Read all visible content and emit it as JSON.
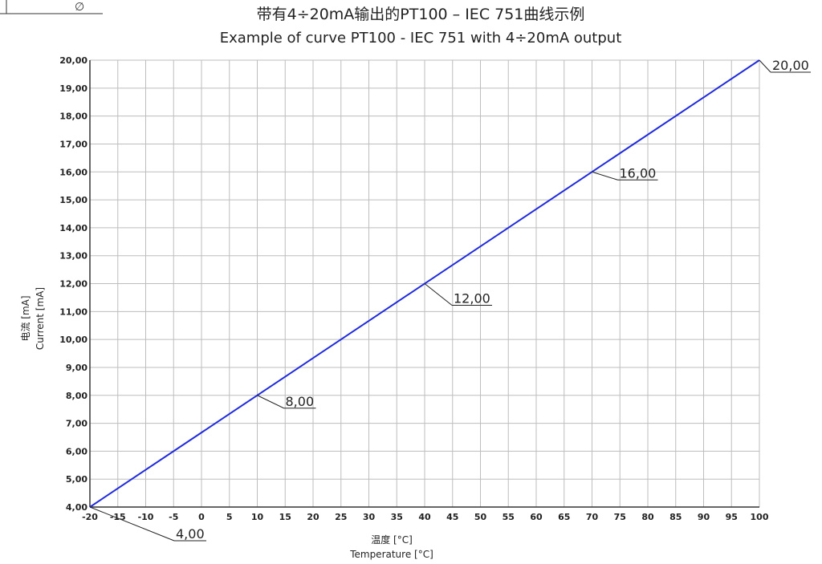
{
  "corner_symbol": "∅",
  "title_cn": "带有4÷20mA输出的PT100 – IEC 751曲线示例",
  "title_en": "Example of curve PT100 - IEC 751 with 4÷20mA output",
  "colors": {
    "line": "#1f2bdc",
    "grid": "#bdbdbd",
    "axis": "#333333",
    "text": "#222222"
  },
  "chart_data": {
    "type": "line",
    "title": "Example of curve PT100 - IEC 751 with 4÷20mA output",
    "xlabel_cn": "温度 [°C]",
    "xlabel_en": "Temperature [°C]",
    "ylabel_cn": "电流 [mA]",
    "ylabel_en": "Current [mA]",
    "xlim": [
      -20,
      100
    ],
    "ylim": [
      4,
      20
    ],
    "grid": true,
    "x_ticks": [
      -20,
      -15,
      -10,
      -5,
      0,
      5,
      10,
      15,
      20,
      25,
      30,
      35,
      40,
      45,
      50,
      55,
      60,
      65,
      70,
      75,
      80,
      85,
      90,
      95,
      100
    ],
    "y_tick_labels": [
      "4,00",
      "5,00",
      "6,00",
      "7,00",
      "8,00",
      "9,00",
      "10,00",
      "11,00",
      "12,00",
      "13,00",
      "14,00",
      "15,00",
      "16,00",
      "17,00",
      "18,00",
      "19,00",
      "20,00"
    ],
    "y_ticks": [
      4,
      5,
      6,
      7,
      8,
      9,
      10,
      11,
      12,
      13,
      14,
      15,
      16,
      17,
      18,
      19,
      20
    ],
    "series": [
      {
        "x": [
          -20,
          100
        ],
        "y": [
          4,
          20
        ]
      }
    ],
    "annotations": [
      {
        "x": -20,
        "y": 4,
        "label": "4,00"
      },
      {
        "x": 10,
        "y": 8,
        "label": "8,00"
      },
      {
        "x": 40,
        "y": 12,
        "label": "12,00"
      },
      {
        "x": 70,
        "y": 16,
        "label": "16,00"
      },
      {
        "x": 100,
        "y": 20,
        "label": "20,00"
      }
    ]
  }
}
